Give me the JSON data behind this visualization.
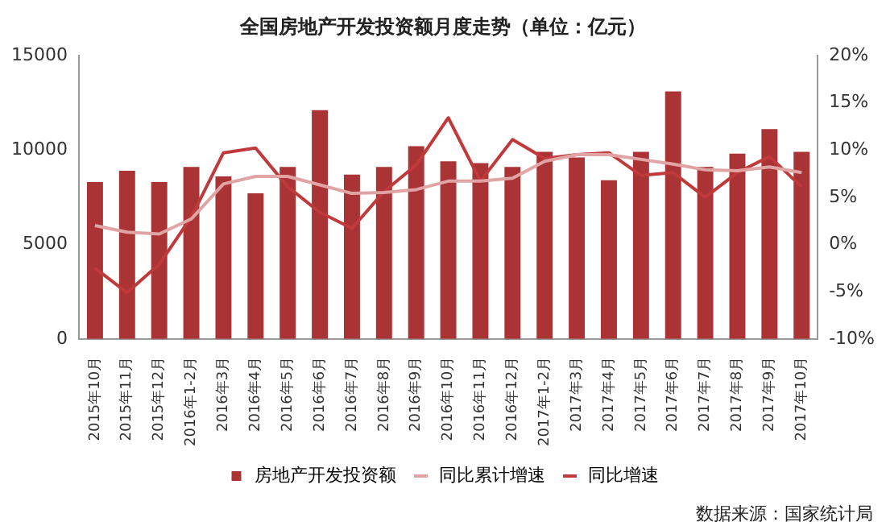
{
  "chart_data": {
    "type": "bar",
    "title": "全国房地产开发投资额月度走势（单位：亿元）",
    "categories": [
      "2015年10月",
      "2015年11月",
      "2015年12月",
      "2016年1-2月",
      "2016年3月",
      "2016年4月",
      "2016年5月",
      "2016年6月",
      "2016年7月",
      "2016年8月",
      "2016年9月",
      "2016年10月",
      "2016年11月",
      "2016年12月",
      "2017年1-2月",
      "2017年3月",
      "2017年4月",
      "2017年5月",
      "2017年6月",
      "2017年7月",
      "2017年8月",
      "2017年9月",
      "2017年10月"
    ],
    "series": [
      {
        "name": "房地产开发投资额",
        "color": "#a93335",
        "values": [
          8300,
          8900,
          8300,
          9100,
          8600,
          7700,
          9100,
          12100,
          8700,
          9100,
          10200,
          9400,
          9300,
          9100,
          9900,
          9600,
          8400,
          9900,
          13100,
          9100,
          9800,
          11100,
          9900
        ]
      },
      {
        "name": "同比累计增速",
        "type": "line",
        "axis": "y2",
        "color": "#e0a4a4",
        "values": [
          2.0,
          1.3,
          1.1,
          2.7,
          6.4,
          7.2,
          7.2,
          6.3,
          5.4,
          5.5,
          5.8,
          6.7,
          6.7,
          7.0,
          8.8,
          9.5,
          9.5,
          9.0,
          8.5,
          7.9,
          7.8,
          8.2,
          7.6
        ]
      },
      {
        "name": "同比增速",
        "type": "line",
        "axis": "y2",
        "color": "#c0393b",
        "values": [
          -2.5,
          -5.1,
          -2.1,
          2.9,
          9.7,
          10.2,
          6.1,
          3.4,
          1.7,
          5.6,
          8.4,
          13.4,
          6.7,
          11.1,
          9.1,
          9.5,
          9.7,
          7.3,
          7.6,
          5.0,
          7.6,
          9.3,
          6.1
        ]
      }
    ],
    "ylim": [
      0,
      15000
    ],
    "yticks": [
      0,
      5000,
      10000,
      15000
    ],
    "y2lim": [
      -10,
      20
    ],
    "y2ticks": [
      {
        "value": -10,
        "label": "-10%"
      },
      {
        "value": -5,
        "label": "-5%"
      },
      {
        "value": 0,
        "label": "0%"
      },
      {
        "value": 5,
        "label": "5%"
      },
      {
        "value": 10,
        "label": "10%"
      },
      {
        "value": 15,
        "label": "15%"
      },
      {
        "value": 20,
        "label": "20%"
      }
    ],
    "grid": false,
    "legend": "bottom",
    "marker": "none",
    "line_style": "solid",
    "annotations": [
      "数据来源：国家统计局"
    ]
  }
}
